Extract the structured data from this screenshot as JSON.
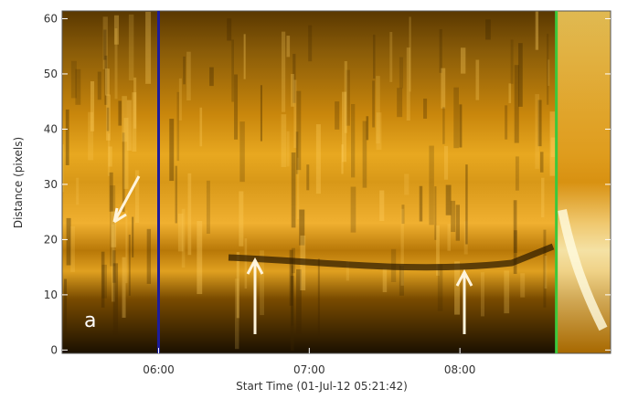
{
  "chart_data": {
    "type": "time-distance",
    "x_label": "Start Time (01-Jul-12 05:21:42)",
    "y_label": "Distance (pixels)",
    "panel_label": "a",
    "xlim": [
      5.36,
      9.0
    ],
    "xticks": [
      {
        "value": 6,
        "label": "06:00"
      },
      {
        "value": 7,
        "label": "07:00"
      },
      {
        "value": 8,
        "label": "08:00"
      }
    ],
    "ylim": [
      -0.6,
      61.4
    ],
    "yticks": [
      0,
      10,
      20,
      30,
      40,
      50,
      60
    ],
    "markers": [
      {
        "x": 6.0,
        "color": "#1c1c9c"
      },
      {
        "x": 8.64,
        "color": "#3cc83c"
      }
    ]
  }
}
